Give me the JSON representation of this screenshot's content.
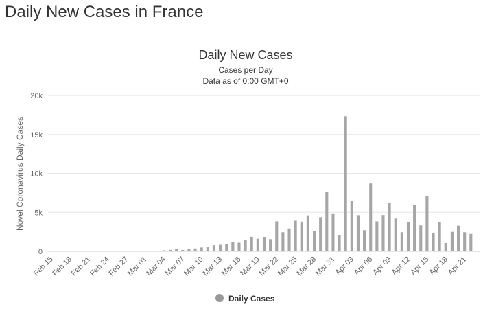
{
  "page": {
    "title": "Daily New Cases in France"
  },
  "colors": {
    "bar": "#a6a6a6",
    "grid": "#e6e6e6",
    "text": "#333333",
    "axis_text": "#666666",
    "legend_marker": "#999999"
  },
  "chart_data": {
    "type": "bar",
    "title": "Daily New Cases",
    "subtitle_lines": [
      "Cases per Day",
      "Data as of 0:00 GMT+0"
    ],
    "ylabel": "Novel Coronavirus Daily Cases",
    "xlabel": "",
    "ylim": [
      0,
      20000
    ],
    "yticks": [
      0,
      5000,
      10000,
      15000,
      20000
    ],
    "ytick_labels": [
      "0",
      "5k",
      "10k",
      "15k",
      "20k"
    ],
    "xtick_labels": [
      "Feb 15",
      "Feb 18",
      "Feb 21",
      "Feb 24",
      "Feb 27",
      "Mar 01",
      "Mar 04",
      "Mar 07",
      "Mar 10",
      "Mar 13",
      "Mar 16",
      "Mar 19",
      "Mar 22",
      "Mar 25",
      "Mar 28",
      "Mar 31",
      "Apr 03",
      "Apr 06",
      "Apr 09",
      "Apr 12",
      "Apr 15",
      "Apr 18",
      "Apr 21"
    ],
    "grid": true,
    "legend_position": "bottom-center",
    "series": [
      {
        "name": "Daily Cases",
        "categories": [
          "Feb 15",
          "Feb 16",
          "Feb 17",
          "Feb 18",
          "Feb 19",
          "Feb 20",
          "Feb 21",
          "Feb 22",
          "Feb 23",
          "Feb 24",
          "Feb 25",
          "Feb 26",
          "Feb 27",
          "Feb 28",
          "Feb 29",
          "Mar 01",
          "Mar 02",
          "Mar 03",
          "Mar 04",
          "Mar 05",
          "Mar 06",
          "Mar 07",
          "Mar 08",
          "Mar 09",
          "Mar 10",
          "Mar 11",
          "Mar 12",
          "Mar 13",
          "Mar 14",
          "Mar 15",
          "Mar 16",
          "Mar 17",
          "Mar 18",
          "Mar 19",
          "Mar 20",
          "Mar 21",
          "Mar 22",
          "Mar 23",
          "Mar 24",
          "Mar 25",
          "Mar 26",
          "Mar 27",
          "Mar 28",
          "Mar 29",
          "Mar 30",
          "Mar 31",
          "Apr 01",
          "Apr 02",
          "Apr 03",
          "Apr 04",
          "Apr 05",
          "Apr 06",
          "Apr 07",
          "Apr 08",
          "Apr 09",
          "Apr 10",
          "Apr 11",
          "Apr 12",
          "Apr 13",
          "Apr 14",
          "Apr 15",
          "Apr 16",
          "Apr 17",
          "Apr 18",
          "Apr 19",
          "Apr 20",
          "Apr 21",
          "Apr 22",
          "Apr 23"
        ],
        "values": [
          0,
          0,
          0,
          0,
          0,
          0,
          0,
          0,
          0,
          0,
          2,
          4,
          20,
          40,
          43,
          30,
          61,
          73,
          138,
          190,
          336,
          177,
          286,
          372,
          497,
          595,
          785,
          838,
          924,
          1210,
          1097,
          1404,
          1861,
          1617,
          1847,
          1559,
          3838,
          2446,
          2931,
          3922,
          3809,
          4611,
          2599,
          4376,
          7578,
          4861,
          2116,
          17335,
          6513,
          4637,
          2710,
          8704,
          3836,
          4656,
          6232,
          4206,
          2446,
          3729,
          5986,
          3328,
          7126,
          2385,
          3729,
          1061,
          2497,
          3288,
          2443,
          2222,
          0
        ]
      }
    ]
  },
  "legend": {
    "label": "Daily Cases"
  }
}
